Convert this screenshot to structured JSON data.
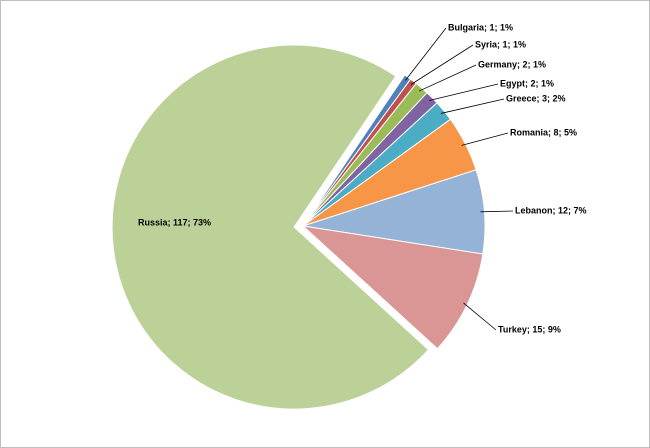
{
  "chart_data": {
    "type": "pie",
    "values": [
      1,
      1,
      2,
      2,
      3,
      8,
      12,
      15,
      117
    ],
    "value_labels": [
      "Bulgaria; 1; 1%",
      "Syria; 1; 1%",
      "Germany; 2; 1%",
      "Egypt; 2; 1%",
      "Greece; 3; 2%",
      "Romania; 8; 5%",
      "Lebanon; 12; 7%",
      "Turkey; 15; 9%",
      "Russia; 117; 73%"
    ],
    "colors": [
      "#4f81bd",
      "#c0504d",
      "#9bbb59",
      "#8064a2",
      "#4bacc6",
      "#f79646",
      "#95b3d7",
      "#d99694",
      "#bcd197"
    ],
    "exploded": [
      8
    ]
  }
}
